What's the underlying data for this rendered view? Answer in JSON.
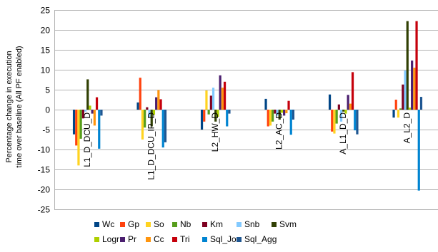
{
  "chart_data": {
    "type": "bar",
    "title": "",
    "xlabel": "",
    "ylabel": "Percentage change in execution time over baseline (All PF enabled)",
    "ylabel_lines": [
      "Percentage change in execution",
      "time over baseline (All PF enabled)"
    ],
    "ylim": [
      -25,
      25
    ],
    "yticks": [
      -25,
      -20,
      -15,
      -10,
      -5,
      0,
      5,
      10,
      15,
      20,
      25
    ],
    "grid": "horizontal",
    "legend_position": "bottom",
    "categories": [
      "L1_D_DCU_D",
      "L1_D_DCU_IP_D",
      "L2_HW_D",
      "L2_AC_D",
      "A_L1_D_D",
      "A_L2_D"
    ],
    "series": [
      {
        "name": "Wc",
        "color": "#004586",
        "values": [
          -6.2,
          1.8,
          -5.0,
          2.7,
          3.8,
          -2.0
        ]
      },
      {
        "name": "Gp",
        "color": "#ff420e",
        "values": [
          -9.0,
          8.0,
          -3.0,
          -4.2,
          -5.5,
          2.5
        ]
      },
      {
        "name": "So",
        "color": "#ffd320",
        "values": [
          -14.0,
          -7.5,
          4.8,
          -4.0,
          -6.0,
          -2.0
        ]
      },
      {
        "name": "Nb",
        "color": "#579d1c",
        "values": [
          -7.3,
          -4.5,
          -1.2,
          -3.0,
          -3.5,
          0.3
        ]
      },
      {
        "name": "Km",
        "color": "#7e0021",
        "values": [
          -2.2,
          0.6,
          3.5,
          -1.0,
          1.3,
          6.3
        ]
      },
      {
        "name": "Snb",
        "color": "#83caff",
        "values": [
          -0.5,
          -1.8,
          5.5,
          -1.5,
          -3.0,
          9.8
        ]
      },
      {
        "name": "Svm",
        "color": "#314004",
        "values": [
          7.6,
          -4.2,
          -3.0,
          -2.5,
          -0.5,
          22.2
        ]
      },
      {
        "name": "Logr",
        "color": "#aecf00",
        "values": [
          1.0,
          -1.3,
          -1.8,
          -0.8,
          -1.0,
          0.5
        ]
      },
      {
        "name": "Pr",
        "color": "#4b1f6f",
        "values": [
          -1.0,
          3.1,
          8.6,
          -1.5,
          3.7,
          12.3
        ]
      },
      {
        "name": "Cc",
        "color": "#ff950e",
        "values": [
          -4.0,
          4.9,
          5.5,
          -0.9,
          1.5,
          10.5
        ]
      },
      {
        "name": "Tri",
        "color": "#c5000b",
        "values": [
          3.1,
          2.6,
          7.0,
          2.2,
          9.4,
          22.2
        ]
      },
      {
        "name": "Sql_Jo",
        "color": "#0084d1",
        "values": [
          -9.8,
          -9.5,
          -4.2,
          -6.3,
          -5.2,
          -20.3
        ]
      },
      {
        "name": "Sql_Agg",
        "color": "#1f5792",
        "values": [
          -1.5,
          -8.2,
          -1.0,
          -2.5,
          -6.2,
          3.2
        ]
      }
    ],
    "legend_rows": [
      [
        "Wc",
        "Gp",
        "So",
        "Nb",
        "Km",
        "Snb",
        "Svm"
      ],
      [
        "Logr",
        "Pr",
        "Cc",
        "Tri",
        "Sql_Jo",
        "Sql_Agg"
      ]
    ]
  }
}
